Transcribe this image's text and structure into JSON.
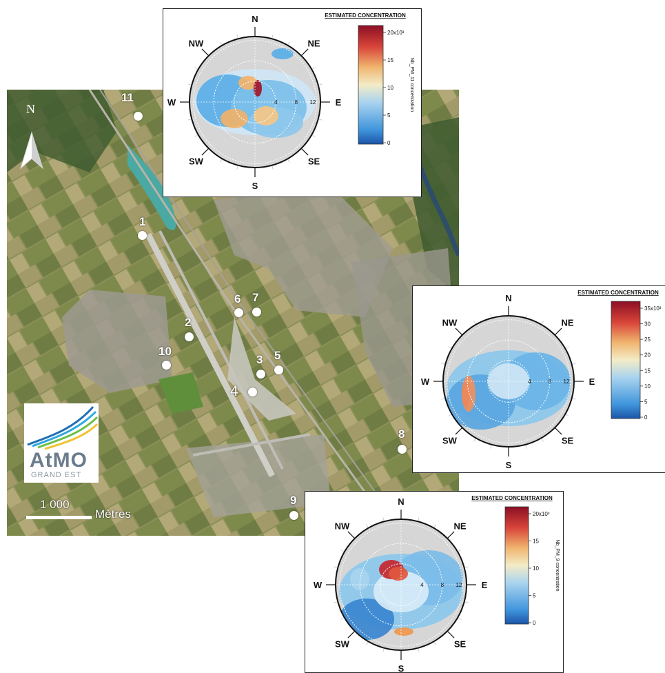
{
  "map": {
    "north_label": "N",
    "scale": {
      "value_label": "1 000",
      "unit_label": "Mètres"
    },
    "sites": [
      {
        "id": "1",
        "label": "1"
      },
      {
        "id": "2",
        "label": "2"
      },
      {
        "id": "3",
        "label": "3"
      },
      {
        "id": "4",
        "label": "4"
      },
      {
        "id": "5",
        "label": "5"
      },
      {
        "id": "6",
        "label": "6"
      },
      {
        "id": "7",
        "label": "7"
      },
      {
        "id": "8",
        "label": "8"
      },
      {
        "id": "9",
        "label": "9"
      },
      {
        "id": "10",
        "label": "10"
      },
      {
        "id": "11",
        "label": "11"
      }
    ],
    "logo": {
      "text": "AtMO",
      "subtext": "GRAND EST",
      "colors": [
        "#1f6fb5",
        "#6cc04a",
        "#f2c230",
        "#2fa8e0"
      ]
    }
  },
  "polar_plots": [
    {
      "id": "site11",
      "title": "ESTIMATED CONCENTRATION",
      "compass": {
        "n": "N",
        "ne": "NE",
        "e": "E",
        "se": "SE",
        "s": "S",
        "sw": "SW",
        "w": "W",
        "nw": "NW"
      },
      "rings": [
        "4",
        "8",
        "12"
      ],
      "colorbar": {
        "ticks": [
          "0",
          "5",
          "10",
          "15",
          "20x10³"
        ],
        "label": "Nb_PM_11 concentration"
      }
    },
    {
      "id": "site8",
      "title": "ESTIMATED CONCENTRATION",
      "compass": {
        "n": "N",
        "ne": "NE",
        "e": "E",
        "se": "SE",
        "s": "S",
        "sw": "SW",
        "w": "W",
        "nw": "NW"
      },
      "rings": [
        "4",
        "8",
        "12"
      ],
      "colorbar": {
        "ticks": [
          "0",
          "5",
          "10",
          "15",
          "20",
          "25",
          "30",
          "35x10³"
        ],
        "label": ""
      }
    },
    {
      "id": "site9",
      "title": "ESTIMATED CONCENTRATION",
      "compass": {
        "n": "N",
        "ne": "NE",
        "e": "E",
        "se": "SE",
        "s": "S",
        "sw": "SW",
        "w": "W",
        "nw": "NW"
      },
      "rings": [
        "4",
        "8",
        "12"
      ],
      "colorbar": {
        "ticks": [
          "0",
          "5",
          "10",
          "15",
          "20x10³"
        ],
        "label": "Nb_PM_9 concentration"
      }
    }
  ],
  "colors": {
    "map_field": "#8a8f5c",
    "runway": "#cfcfc8",
    "lake": "#4aa9a2",
    "urban": "#9c9a92"
  }
}
